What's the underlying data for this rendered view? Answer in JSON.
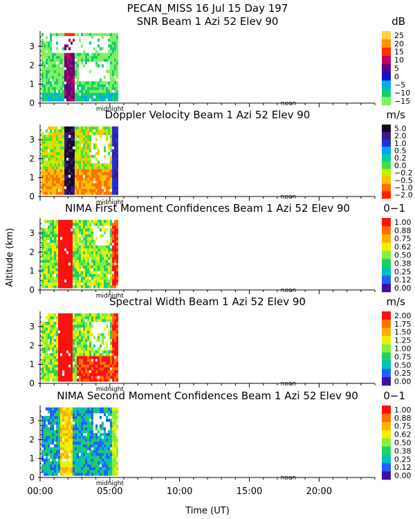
{
  "header": {
    "line1": "PECAN_MISS  16 Jul 15 Day 197"
  },
  "shared_axes": {
    "ylabel": "Altitude (km)",
    "xlabel": "Time (UT)",
    "xticks": [
      "00:00",
      "05:00",
      "10:00",
      "15:00",
      "20:00"
    ],
    "xtick_hours": [
      0,
      5,
      10,
      15,
      20
    ],
    "xlim_hours": [
      0,
      24
    ],
    "yticks": [
      "0",
      "1",
      "2",
      "3"
    ],
    "ytick_values": [
      0,
      1,
      2,
      3
    ],
    "ylim_km": [
      0,
      3.8
    ],
    "midnight_label": "midnight",
    "noon_label": "noon",
    "data_end_hours": 5.6
  },
  "chart_data": [
    {
      "type": "heatmap",
      "title": "SNR Beam 1 Azi  52 Elev 90",
      "units": "dB",
      "colorbar_labels": [
        "25",
        "20",
        "15",
        "10",
        "5",
        "0",
        "−5",
        "−10",
        "−15"
      ],
      "colors": [
        "#ffd040",
        "#ff9000",
        "#ff3000",
        "#c00060",
        "#5a0080",
        "#1010d0",
        "#00b0e8",
        "#10d070",
        "#80f060"
      ]
    },
    {
      "type": "heatmap",
      "title": "Doppler Velocity Beam 1 Azi  52 Elev 90",
      "units": "m/s",
      "colorbar_labels": [
        "5.0",
        "2.0",
        "1.0",
        "0.5",
        "0.2",
        "0.0",
        "−0.2",
        "−0.5",
        "−1.0",
        "−2.0"
      ],
      "colors": [
        "#1a0a20",
        "#3a1a90",
        "#2030e0",
        "#00a0ff",
        "#00d0a0",
        "#40e040",
        "#c0f000",
        "#ffc000",
        "#ff7000",
        "#ff2000"
      ]
    },
    {
      "type": "heatmap",
      "title": "NIMA First Moment Confidences Beam 1 Azi  52 Elev 90",
      "units": "0−1",
      "colorbar_labels": [
        "1.00",
        "0.88",
        "0.75",
        "0.62",
        "0.50",
        "0.38",
        "0.25",
        "0.12",
        "0.00"
      ],
      "colors": [
        "#ff1010",
        "#ff7000",
        "#ffb000",
        "#f0f000",
        "#80f040",
        "#20d060",
        "#00c0c0",
        "#2060ff",
        "#4010a0"
      ]
    },
    {
      "type": "heatmap",
      "title": "Spectral Width Beam 1 Azi  52 Elev 90",
      "units": "m/s",
      "colorbar_labels": [
        "2.00",
        "1.75",
        "1.50",
        "1.25",
        "1.00",
        "0.75",
        "0.50",
        "0.25",
        "0.00"
      ],
      "colors": [
        "#ff1010",
        "#ff7000",
        "#ffb000",
        "#f0f000",
        "#80f040",
        "#20d060",
        "#00c0c0",
        "#2060ff",
        "#4010a0"
      ]
    },
    {
      "type": "heatmap",
      "title": "NIMA Second Moment Confidences Beam 1 Azi  52 Elev 90",
      "units": "0−1",
      "colorbar_labels": [
        "1.00",
        "0.88",
        "0.75",
        "0.62",
        "0.50",
        "0.38",
        "0.25",
        "0.12",
        "0.00"
      ],
      "colors": [
        "#ff1010",
        "#ff7000",
        "#ffb000",
        "#f0f000",
        "#80f040",
        "#20d060",
        "#00c0c0",
        "#2060ff",
        "#4010a0"
      ]
    }
  ]
}
